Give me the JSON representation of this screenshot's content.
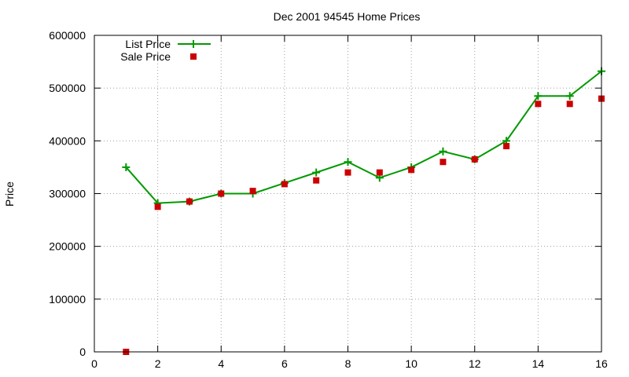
{
  "chart_data": {
    "type": "line",
    "title": "Dec 2001 94545 Home Prices",
    "xlabel": "",
    "ylabel": "Price",
    "xlim": [
      0,
      16
    ],
    "ylim": [
      0,
      600000
    ],
    "xticks": [
      0,
      2,
      4,
      6,
      8,
      10,
      12,
      14,
      16
    ],
    "yticks": [
      0,
      100000,
      200000,
      300000,
      400000,
      500000,
      600000
    ],
    "grid": true,
    "legend": "top-left",
    "series": [
      {
        "name": "List Price",
        "style": "line+plus",
        "color": "#009900",
        "x": [
          1,
          2,
          3,
          4,
          5,
          6,
          7,
          8,
          9,
          10,
          11,
          12,
          13,
          14,
          15,
          16
        ],
        "y": [
          350000,
          282000,
          285000,
          300000,
          300000,
          320000,
          340000,
          360000,
          330000,
          350000,
          380000,
          365000,
          400000,
          485000,
          485000,
          532000
        ]
      },
      {
        "name": "Sale Price",
        "style": "square",
        "color": "#cc0000",
        "x": [
          1,
          2,
          3,
          4,
          5,
          6,
          7,
          8,
          9,
          10,
          11,
          12,
          13,
          14,
          15,
          16
        ],
        "y": [
          0,
          275000,
          285000,
          300000,
          305000,
          318000,
          325000,
          340000,
          340000,
          345000,
          360000,
          365000,
          390000,
          470000,
          470000,
          480000
        ]
      }
    ]
  }
}
